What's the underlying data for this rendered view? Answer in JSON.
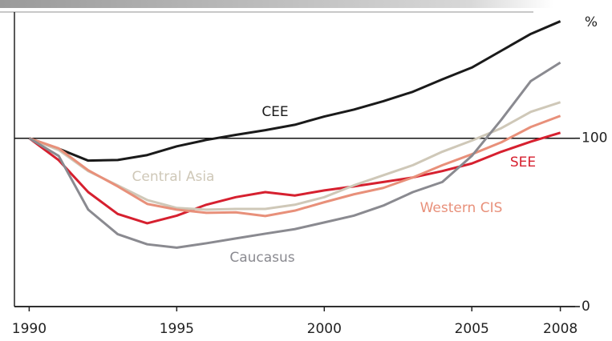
{
  "chart_data": {
    "type": "line",
    "x": [
      1990,
      1991,
      1992,
      1993,
      1994,
      1995,
      1996,
      1997,
      1998,
      1999,
      2000,
      2001,
      2002,
      2003,
      2004,
      2005,
      2006,
      2007,
      2008
    ],
    "series": [
      {
        "name": "CEE",
        "color": "#1a1a1a",
        "values": [
          100,
          93.8,
          86.7,
          87.1,
          90,
          95.2,
          99,
          102,
          104.8,
          108,
          112.9,
          117,
          122,
          127.6,
          135,
          142,
          152,
          162,
          169.5
        ]
      },
      {
        "name": "SEE",
        "color": "#d6202f",
        "values": [
          100,
          87,
          68,
          55,
          49.5,
          54,
          60.5,
          65,
          68,
          66,
          69,
          71.4,
          74,
          76.7,
          80.5,
          85,
          92,
          98,
          103.3
        ]
      },
      {
        "name": "Central Asia",
        "color": "#cfc8b8",
        "values": [
          100,
          93,
          80.5,
          72,
          63.3,
          58.6,
          57.6,
          58,
          58,
          60.5,
          65,
          72,
          78,
          84,
          92,
          98.6,
          106,
          115.7,
          121.4
        ]
      },
      {
        "name": "Western CIS",
        "color": "#e8907a",
        "values": [
          100,
          94,
          81,
          71.4,
          61,
          57.6,
          55.7,
          56,
          53.8,
          57,
          62,
          66.7,
          70.5,
          76.7,
          84,
          90.5,
          97.6,
          106.7,
          113.3
        ]
      },
      {
        "name": "Caucasus",
        "color": "#8a8a90",
        "values": [
          100,
          89.5,
          57.6,
          43,
          37,
          35,
          37.6,
          40.5,
          43.3,
          46,
          50,
          54,
          60,
          68,
          74,
          89.5,
          111,
          134,
          145
        ]
      }
    ],
    "xlim": [
      1989.5,
      2008.5
    ],
    "xticks": [
      1990,
      1995,
      2000,
      2005,
      2008
    ],
    "ylim": [
      0,
      175
    ],
    "yticks": [
      0,
      100
    ],
    "y_label": "%",
    "grid": true
  }
}
